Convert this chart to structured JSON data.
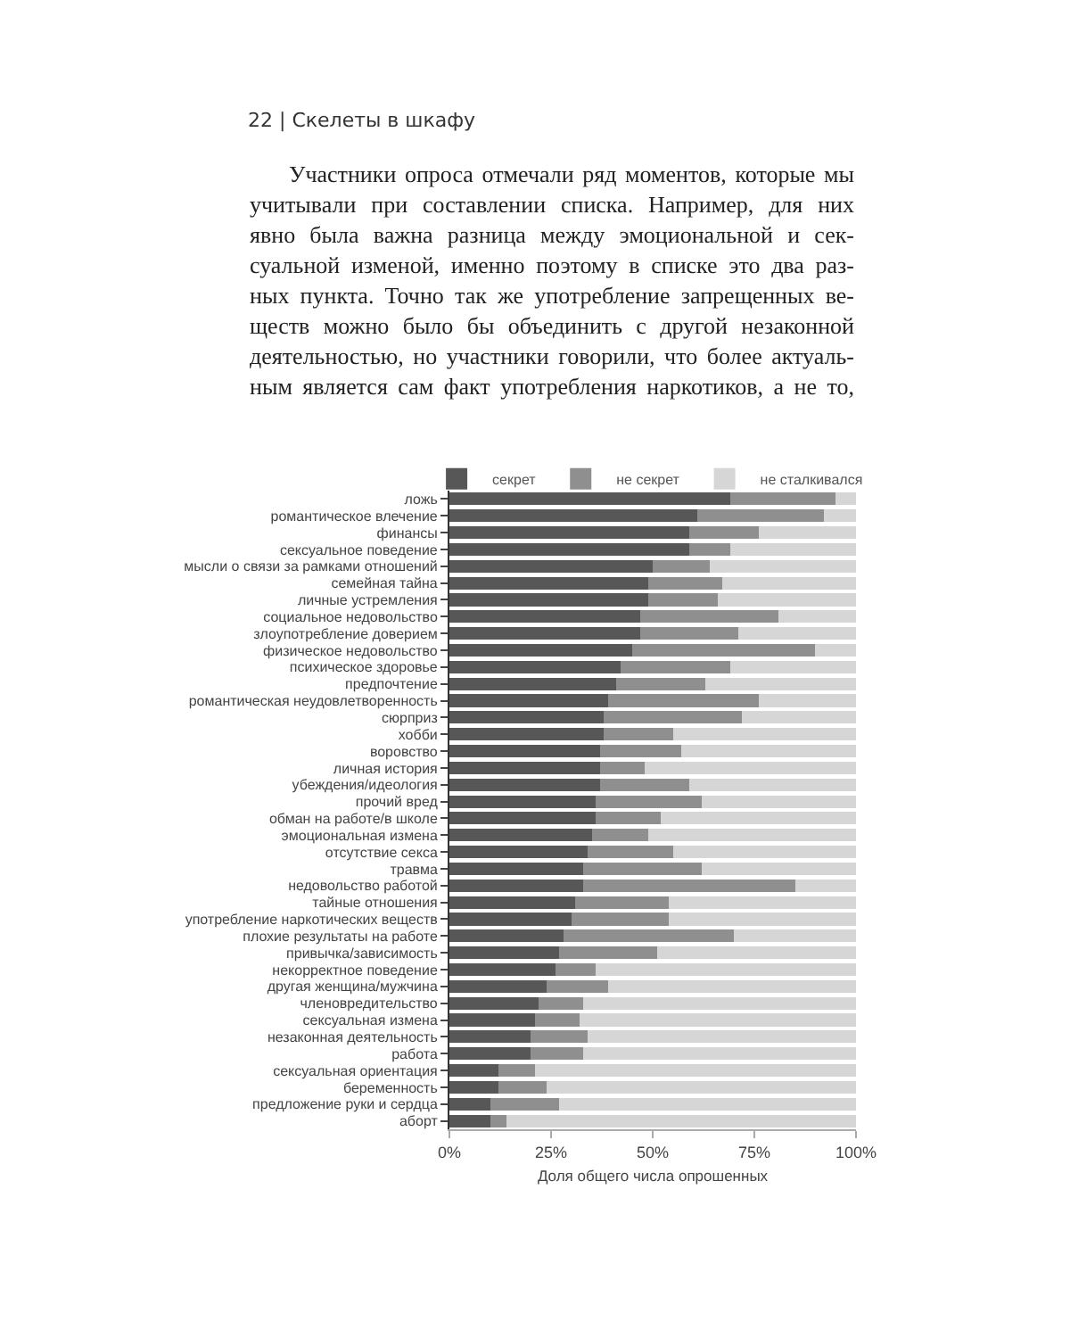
{
  "chart_data": {
    "type": "bar",
    "orientation": "horizontal",
    "stacked": true,
    "annotations": [
      "22 | Скелеты в шкафу",
      "Участники опроса отмечали ряд моментов, которые мы\nучитывали при составлении списка. Например, для них\nявно была важна разница между эмоциональной и сек-\nсуальной изменой, именно поэтому в списке это два раз-\nных пункта. Точно так же употребление запрещенных ве-\nществ можно было бы объединить с другой незаконной\nдеятельностью, но участники говорили, что более актуаль-\nным является сам факт употребления наркотиков, а не то,"
    ],
    "categories": [
      "ложь",
      "романтическое влечение",
      "финансы",
      "сексуальное поведение",
      "мысли о связи за рамками отношений",
      "семейная тайна",
      "личные устремления",
      "социальное недовольство",
      "злоупотребление доверием",
      "физическое недовольство",
      "психическое здоровье",
      "предпочтение",
      "романтическая неудовлетворенность",
      "сюрприз",
      "хобби",
      "воровство",
      "личная история",
      "убеждения/идеология",
      "прочий вред",
      "обман на работе/в школе",
      "эмоциональная измена",
      "отсутствие секса",
      "травма",
      "недовольство работой",
      "тайные отношения",
      "употребление наркотических веществ",
      "плохие результаты на работе",
      "привычка/зависимость",
      "некорректное поведение",
      "другая женщина/мужчина",
      "членовредительство",
      "сексуальная измена",
      "незаконная деятельность",
      "работа",
      "сексуальная ориентация",
      "беременность",
      "предложение руки и сердца",
      "аборт"
    ],
    "series": [
      {
        "name": "секрет",
        "color": "#575757",
        "values": [
          69,
          61,
          59,
          59,
          50,
          49,
          49,
          47,
          47,
          45,
          42,
          41,
          39,
          38,
          38,
          37,
          37,
          37,
          36,
          36,
          35,
          34,
          33,
          33,
          31,
          30,
          28,
          27,
          26,
          24,
          22,
          21,
          20,
          20,
          12,
          12,
          10,
          10
        ]
      },
      {
        "name": "не секрет",
        "color": "#8f8f8f",
        "values": [
          26,
          31,
          17,
          10,
          14,
          18,
          17,
          34,
          24,
          45,
          27,
          22,
          37,
          34,
          17,
          20,
          11,
          22,
          26,
          16,
          14,
          21,
          29,
          52,
          23,
          24,
          42,
          24,
          10,
          15,
          11,
          11,
          14,
          13,
          9,
          12,
          17,
          4
        ]
      },
      {
        "name": "не сталкивался",
        "color": "#d6d6d6",
        "values": [
          5,
          8,
          24,
          31,
          36,
          33,
          34,
          19,
          29,
          10,
          31,
          37,
          24,
          28,
          45,
          43,
          52,
          41,
          38,
          48,
          51,
          45,
          38,
          15,
          46,
          46,
          30,
          49,
          64,
          61,
          67,
          68,
          66,
          67,
          79,
          76,
          73,
          86
        ]
      }
    ],
    "xlabel": "Доля общего числа опрошенных",
    "xlim": [
      0,
      100
    ],
    "xticks": [
      {
        "value": 0,
        "label": "0%"
      },
      {
        "value": 25,
        "label": "25%"
      },
      {
        "value": 50,
        "label": "50%"
      },
      {
        "value": 75,
        "label": "75%"
      },
      {
        "value": 100,
        "label": "100%"
      }
    ],
    "legend": "top"
  }
}
